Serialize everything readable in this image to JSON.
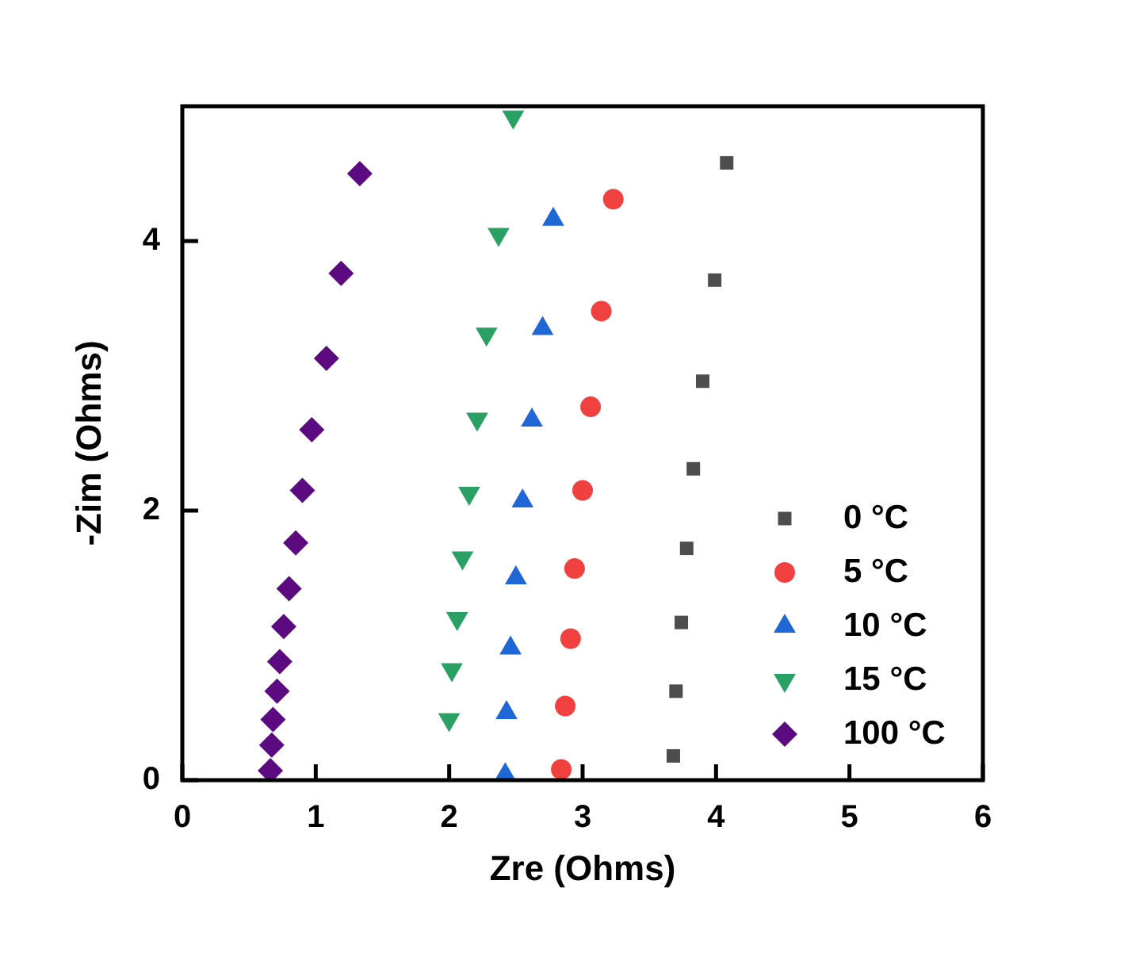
{
  "chart_data": {
    "type": "scatter",
    "xlabel": "Zre (Ohms)",
    "ylabel": "-Zim (Ohms)",
    "xlim": [
      0,
      6
    ],
    "xticks": [
      0,
      1,
      2,
      3,
      4,
      5,
      6
    ],
    "ylim": [
      0,
      5
    ],
    "yticks": [
      0,
      2,
      4
    ],
    "legend": "bottom right",
    "series": [
      {
        "name": "0 °C",
        "color": "#4d4d4d",
        "marker": "square",
        "x": [
          3.68,
          3.7,
          3.74,
          3.78,
          3.83,
          3.9,
          3.99,
          4.08
        ],
        "values": [
          0.18,
          0.66,
          1.17,
          1.72,
          2.31,
          2.96,
          3.71,
          4.58
        ]
      },
      {
        "name": "5 °C",
        "color": "#f04040",
        "marker": "circle",
        "x": [
          2.84,
          2.87,
          2.91,
          2.94,
          3.0,
          3.06,
          3.14,
          3.23
        ],
        "values": [
          0.08,
          0.55,
          1.05,
          1.57,
          2.15,
          2.77,
          3.48,
          4.31
        ]
      },
      {
        "name": "10 °C",
        "color": "#1f66d6",
        "marker": "triangle",
        "x": [
          2.42,
          2.43,
          2.46,
          2.5,
          2.55,
          2.62,
          2.7,
          2.78
        ],
        "values": [
          0.04,
          0.5,
          0.98,
          1.5,
          2.07,
          2.67,
          3.35,
          4.16
        ]
      },
      {
        "name": "15 °C",
        "color": "#2aa065",
        "marker": "triangle-down",
        "x": [
          2.0,
          2.02,
          2.06,
          2.1,
          2.15,
          2.21,
          2.28,
          2.37,
          2.48
        ],
        "values": [
          0.45,
          0.82,
          1.2,
          1.65,
          2.13,
          2.68,
          3.31,
          4.05,
          4.92
        ]
      },
      {
        "name": "100 °C",
        "color": "#5c0a80",
        "marker": "diamond",
        "x": [
          0.66,
          0.67,
          0.68,
          0.71,
          0.73,
          0.76,
          0.8,
          0.85,
          0.9,
          0.97,
          1.08,
          1.19,
          1.33
        ],
        "values": [
          0.07,
          0.26,
          0.45,
          0.66,
          0.88,
          1.14,
          1.42,
          1.76,
          2.15,
          2.6,
          3.13,
          3.76,
          4.5
        ]
      }
    ]
  }
}
